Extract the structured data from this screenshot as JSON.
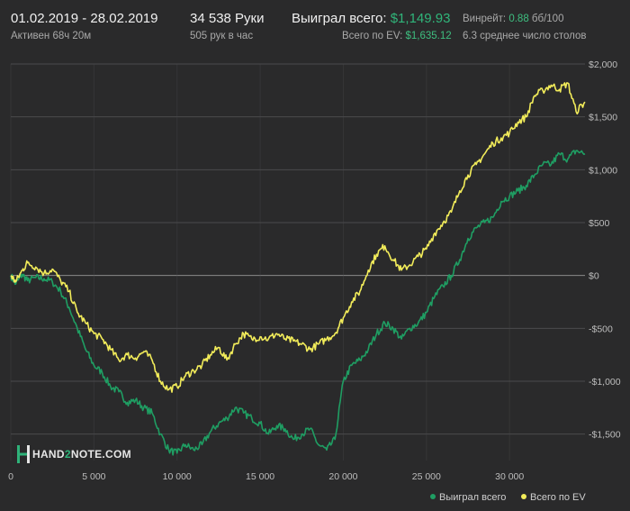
{
  "header": {
    "date_range": "01.02.2019 - 28.02.2019",
    "active_time": "Активен 68ч 20м",
    "hands": "34 538 Руки",
    "hands_per_hour": "505 рук в час",
    "won_label": "Выиграл всего:",
    "won_value": "$1,149.93",
    "ev_label": "Всего по EV:",
    "ev_value": "$1,635.12",
    "winrate_label": "Винрейт:",
    "winrate_value": "0.88",
    "winrate_unit": "бб/100",
    "avg_tables": "6.3 среднее число столов"
  },
  "logo": {
    "text_a": "HAND",
    "text_b": "2",
    "text_c": "NOTE.COM"
  },
  "colors": {
    "background": "#2a2a2b",
    "grid": "#4a4a4c",
    "zero_line": "#8a8a8a",
    "won_series": "#1f9e63",
    "ev_series": "#f2ec5a"
  },
  "chart_data": {
    "type": "line",
    "x_ticks": [
      0,
      5000,
      10000,
      15000,
      20000,
      25000,
      30000
    ],
    "x_tick_labels": [
      "0",
      "5 000",
      "10 000",
      "15 000",
      "20 000",
      "25 000",
      "30 000"
    ],
    "y_ticks": [
      -1500,
      -1000,
      -500,
      0,
      500,
      1000,
      1500,
      2000
    ],
    "y_tick_labels": [
      "-$1,500",
      "-$1,000",
      "-$500",
      "$0",
      "$500",
      "$1,000",
      "$1,500",
      "$2,000"
    ],
    "xlim": [
      0,
      34538
    ],
    "ylim": [
      -1750,
      2000
    ],
    "grid": true,
    "legend_position": "bottom-right",
    "series": [
      {
        "name": "Выиграл всего",
        "color": "#1f9e63",
        "x": [
          0,
          300,
          700,
          1000,
          1500,
          2000,
          2500,
          3000,
          3500,
          4000,
          4500,
          5000,
          5500,
          6000,
          6500,
          7000,
          7500,
          8000,
          8500,
          9000,
          9500,
          10000,
          10500,
          11000,
          11500,
          12000,
          12500,
          13000,
          13500,
          14000,
          14500,
          15000,
          15500,
          16000,
          16500,
          17000,
          17500,
          18000,
          18500,
          19000,
          19500,
          20000,
          20500,
          21000,
          21500,
          22000,
          22500,
          23000,
          23500,
          24000,
          24500,
          25000,
          25500,
          26000,
          26500,
          27000,
          27500,
          28000,
          28500,
          29000,
          29500,
          30000,
          30500,
          31000,
          31500,
          32000,
          32500,
          33000,
          33500,
          34000,
          34538
        ],
        "values": [
          0,
          -80,
          10,
          -50,
          -20,
          -30,
          -60,
          -150,
          -300,
          -500,
          -700,
          -850,
          -920,
          -1050,
          -1100,
          -1200,
          -1180,
          -1250,
          -1300,
          -1500,
          -1650,
          -1680,
          -1600,
          -1650,
          -1600,
          -1480,
          -1400,
          -1350,
          -1250,
          -1300,
          -1350,
          -1400,
          -1500,
          -1420,
          -1450,
          -1550,
          -1500,
          -1450,
          -1600,
          -1650,
          -1550,
          -1000,
          -850,
          -800,
          -700,
          -550,
          -450,
          -500,
          -600,
          -500,
          -450,
          -350,
          -200,
          -100,
          0,
          150,
          350,
          450,
          500,
          550,
          700,
          750,
          800,
          850,
          950,
          1050,
          1050,
          1150,
          1100,
          1180,
          1150
        ]
      },
      {
        "name": "Всего по EV",
        "color": "#f2ec5a",
        "x": [
          0,
          300,
          700,
          1000,
          1500,
          2000,
          2500,
          3000,
          3500,
          4000,
          4500,
          5000,
          5500,
          6000,
          6500,
          7000,
          7500,
          8000,
          8500,
          9000,
          9500,
          10000,
          10500,
          11000,
          11500,
          12000,
          12500,
          13000,
          13500,
          14000,
          14500,
          15000,
          15500,
          16000,
          16500,
          17000,
          17500,
          18000,
          18500,
          19000,
          19500,
          20000,
          20500,
          21000,
          21500,
          22000,
          22500,
          23000,
          23500,
          24000,
          24500,
          25000,
          25500,
          26000,
          26500,
          27000,
          27500,
          28000,
          28500,
          29000,
          29500,
          30000,
          30500,
          31000,
          31500,
          32000,
          32500,
          33000,
          33500,
          34000,
          34538
        ],
        "values": [
          0,
          -60,
          50,
          120,
          80,
          20,
          60,
          -50,
          -150,
          -350,
          -450,
          -550,
          -600,
          -700,
          -800,
          -750,
          -780,
          -720,
          -800,
          -1000,
          -1080,
          -1050,
          -950,
          -900,
          -850,
          -750,
          -680,
          -800,
          -650,
          -550,
          -600,
          -580,
          -600,
          -550,
          -600,
          -620,
          -650,
          -700,
          -650,
          -600,
          -550,
          -400,
          -250,
          -150,
          50,
          200,
          280,
          150,
          50,
          100,
          180,
          250,
          400,
          500,
          600,
          800,
          950,
          1050,
          1150,
          1250,
          1300,
          1350,
          1450,
          1500,
          1700,
          1750,
          1800,
          1760,
          1820,
          1550,
          1640
        ]
      }
    ]
  }
}
